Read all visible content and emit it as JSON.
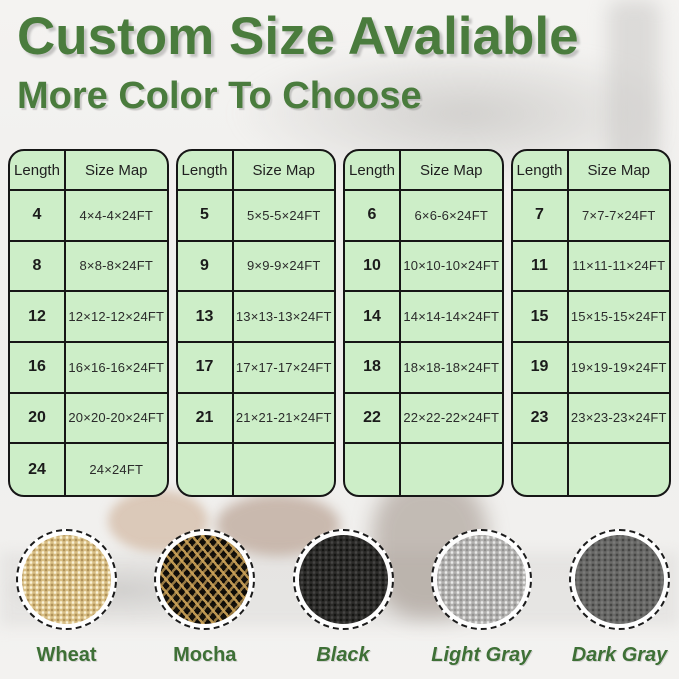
{
  "page": {
    "title": "Custom Size Avaliable",
    "subtitle": "More Color To Choose"
  },
  "colors": {
    "heading_green": "#4a7c3d",
    "label_green": "#3e7036",
    "table_bg": "#cdeec8",
    "table_border": "#161616"
  },
  "tables": [
    {
      "headers": [
        "Length",
        "Size Map"
      ],
      "rows": [
        {
          "length": "4",
          "size": "4×4-4×24FT"
        },
        {
          "length": "8",
          "size": "8×8-8×24FT"
        },
        {
          "length": "12",
          "size": "12×12-12×24FT"
        },
        {
          "length": "16",
          "size": "16×16-16×24FT"
        },
        {
          "length": "20",
          "size": "20×20-20×24FT"
        },
        {
          "length": "24",
          "size": "24×24FT"
        }
      ]
    },
    {
      "headers": [
        "Length",
        "Size Map"
      ],
      "rows": [
        {
          "length": "5",
          "size": "5×5-5×24FT"
        },
        {
          "length": "9",
          "size": "9×9-9×24FT"
        },
        {
          "length": "13",
          "size": "13×13-13×24FT"
        },
        {
          "length": "17",
          "size": "17×17-17×24FT"
        },
        {
          "length": "21",
          "size": "21×21-21×24FT"
        },
        {
          "length": "",
          "size": ""
        }
      ]
    },
    {
      "headers": [
        "Length",
        "Size Map"
      ],
      "rows": [
        {
          "length": "6",
          "size": "6×6-6×24FT"
        },
        {
          "length": "10",
          "size": "10×10-10×24FT"
        },
        {
          "length": "14",
          "size": "14×14-14×24FT"
        },
        {
          "length": "18",
          "size": "18×18-18×24FT"
        },
        {
          "length": "22",
          "size": "22×22-22×24FT"
        },
        {
          "length": "",
          "size": ""
        }
      ]
    },
    {
      "headers": [
        "Length",
        "Size Map"
      ],
      "rows": [
        {
          "length": "7",
          "size": "7×7-7×24FT"
        },
        {
          "length": "11",
          "size": "11×11-11×24FT"
        },
        {
          "length": "15",
          "size": "15×15-15×24FT"
        },
        {
          "length": "19",
          "size": "19×19-19×24FT"
        },
        {
          "length": "23",
          "size": "23×23-23×24FT"
        },
        {
          "length": "",
          "size": ""
        }
      ]
    }
  ],
  "swatches": [
    {
      "name": "Wheat",
      "style": "wheat",
      "base_color": "#d9bf85",
      "italic": false
    },
    {
      "name": "Mocha",
      "style": "mocha",
      "base_color": "#16120c",
      "italic": false
    },
    {
      "name": "Black",
      "style": "black",
      "base_color": "#2c2b29",
      "italic": true
    },
    {
      "name": "Light Gray",
      "style": "light-gray",
      "base_color": "#b3b2b0",
      "italic": true
    },
    {
      "name": "Dark Gray",
      "style": "dark-gray",
      "base_color": "#696967",
      "italic": true
    }
  ]
}
